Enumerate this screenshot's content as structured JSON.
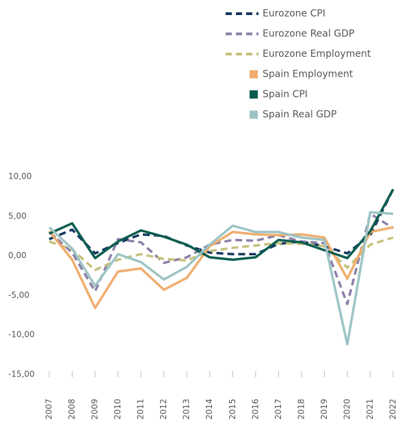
{
  "chart_data": {
    "type": "line",
    "x": [
      2007,
      2008,
      2009,
      2010,
      2011,
      2012,
      2013,
      2014,
      2015,
      2016,
      2017,
      2018,
      2019,
      2020,
      2021,
      2022
    ],
    "xlim": [
      2007,
      2022
    ],
    "xticks": [
      2007,
      2008,
      2009,
      2010,
      2011,
      2012,
      2013,
      2014,
      2015,
      2016,
      2017,
      2018,
      2019,
      2020,
      2021,
      2022
    ],
    "ylim": [
      -15,
      10
    ],
    "yticks": [
      {
        "value": -15,
        "label": "-15,00"
      },
      {
        "value": -10,
        "label": "-10,00"
      },
      {
        "value": -5,
        "label": "-5,00"
      },
      {
        "value": 0,
        "label": "0,00"
      },
      {
        "value": 5,
        "label": "5,00"
      },
      {
        "value": 10,
        "label": "10,00"
      }
    ],
    "grid": false,
    "legend": "top-right",
    "series": [
      {
        "name": "Eurozone CPI",
        "color": "#14375e",
        "dash": true,
        "values": [
          2.1,
          3.3,
          0.3,
          1.6,
          2.7,
          2.5,
          1.3,
          0.4,
          0.2,
          0.2,
          1.5,
          1.8,
          1.2,
          0.3,
          2.6,
          8.4
        ]
      },
      {
        "name": "Eurozone Real GDP",
        "color": "#8d7fa8",
        "dash": true,
        "values": [
          3.0,
          0.4,
          -4.5,
          2.1,
          1.7,
          -0.9,
          -0.2,
          1.4,
          2.0,
          1.9,
          2.6,
          1.8,
          1.6,
          -6.1,
          5.3,
          3.5
        ]
      },
      {
        "name": "Eurozone Employment",
        "color": "#c4c27c",
        "dash": true,
        "values": [
          1.8,
          0.8,
          -1.8,
          -0.5,
          0.2,
          -0.4,
          -0.6,
          0.6,
          1.0,
          1.3,
          1.6,
          1.5,
          1.2,
          -1.5,
          1.4,
          2.3
        ]
      },
      {
        "name": "Spain Employment",
        "color": "#f0ad6e",
        "dash": false,
        "values": [
          3.1,
          -0.5,
          -6.6,
          -2.0,
          -1.6,
          -4.3,
          -2.8,
          1.2,
          3.0,
          2.7,
          2.6,
          2.7,
          2.3,
          -2.9,
          3.0,
          3.6
        ]
      },
      {
        "name": "Spain CPI",
        "color": "#0b5c4f",
        "dash": false,
        "values": [
          2.8,
          4.1,
          -0.3,
          1.8,
          3.2,
          2.4,
          1.4,
          -0.2,
          -0.5,
          -0.2,
          2.0,
          1.7,
          0.7,
          -0.3,
          3.1,
          8.4
        ]
      },
      {
        "name": "Spain Real GDP",
        "color": "#9dc4c4",
        "dash": false,
        "values": [
          3.6,
          0.9,
          -3.8,
          0.2,
          -0.8,
          -3.0,
          -1.4,
          1.4,
          3.8,
          3.0,
          3.0,
          2.3,
          2.0,
          -11.2,
          5.5,
          5.3
        ]
      }
    ]
  }
}
